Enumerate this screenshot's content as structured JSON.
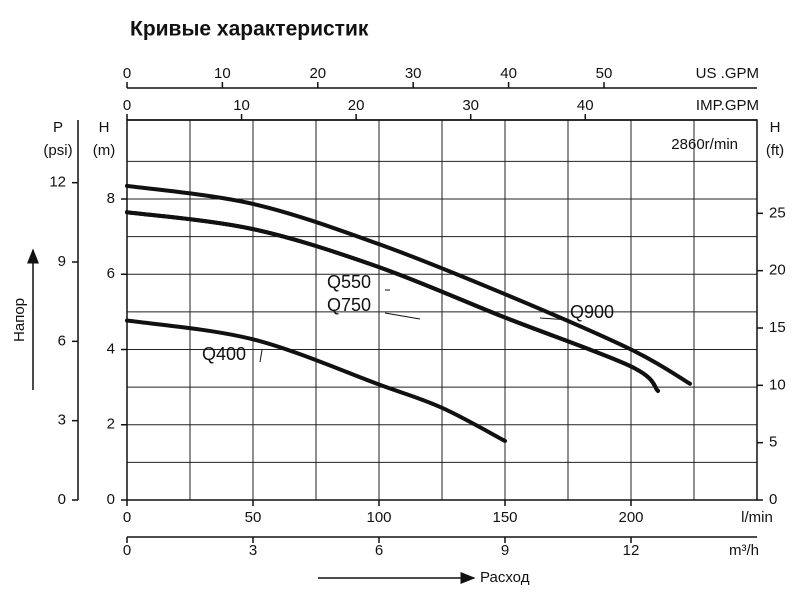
{
  "chart_data": {
    "type": "line",
    "title": "Кривые характеристик",
    "annotation": "2860r/min",
    "x_title": "Расход",
    "y_title": "Напор",
    "xlim": [
      0,
      250
    ],
    "xticks": [
      0,
      50,
      100,
      150,
      200
    ],
    "minor_xticks": [
      25,
      75,
      125,
      175,
      225
    ],
    "x_label": "l/min",
    "ylim": [
      0,
      10.1
    ],
    "yticks": [
      0,
      2,
      4,
      6,
      8
    ],
    "minor_yticks": [
      1,
      3,
      5,
      7,
      9
    ],
    "y_label": [
      "H",
      "(m)"
    ],
    "grid": true,
    "extra_axes": [
      {
        "label": "m³/h",
        "side": "bottom",
        "lim": [
          0,
          15
        ],
        "ticks": [
          0,
          3,
          6,
          9,
          12
        ]
      },
      {
        "label": "US .GPM",
        "side": "top",
        "lim": [
          0,
          66.04
        ],
        "ticks": [
          0,
          10,
          20,
          30,
          40,
          50
        ]
      },
      {
        "label": "IMP.GPM",
        "side": "top",
        "lim": [
          0,
          54.99
        ],
        "ticks": [
          0,
          10,
          20,
          30,
          40
        ]
      },
      {
        "label": [
          "P",
          "(psi)"
        ],
        "side": "left",
        "lim": [
          0,
          14.37
        ],
        "ticks": [
          0,
          3,
          6,
          9,
          12
        ]
      },
      {
        "label": [
          "H",
          "(ft)"
        ],
        "side": "right",
        "lim": [
          0,
          33.14
        ],
        "ticks": [
          0,
          5,
          10,
          15,
          20,
          25
        ]
      }
    ],
    "series": [
      {
        "name": "Q900",
        "color": "#111111",
        "x": [
          0,
          50,
          100,
          150,
          200,
          223.4
        ],
        "values": [
          8.35,
          7.87,
          6.8,
          5.47,
          4.0,
          3.09
        ]
      },
      {
        "name": "Q750",
        "color": "#111111",
        "x": [
          0,
          50,
          100,
          150,
          200,
          210.7
        ],
        "values": [
          7.65,
          7.2,
          6.19,
          4.85,
          3.55,
          2.9
        ]
      },
      {
        "name": "Q550",
        "color": "#111111",
        "x": [
          0,
          50,
          100,
          150,
          200,
          210.7
        ],
        "values": [
          7.65,
          7.2,
          6.19,
          4.85,
          3.55,
          2.9
        ]
      },
      {
        "name": "Q400",
        "color": "#111111",
        "x": [
          0,
          50,
          100,
          125,
          150
        ],
        "values": [
          4.77,
          4.27,
          3.07,
          2.45,
          1.57
        ]
      }
    ]
  }
}
